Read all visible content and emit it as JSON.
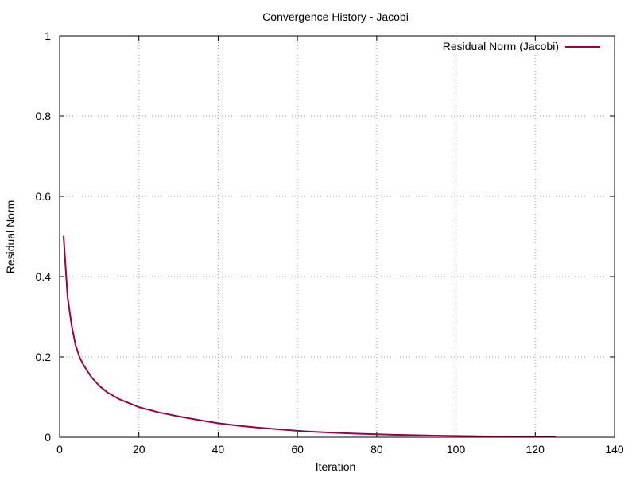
{
  "chart_data": {
    "type": "line",
    "title": "Convergence History - Jacobi",
    "xlabel": "Iteration",
    "ylabel": "Residual Norm",
    "xlim": [
      0,
      140
    ],
    "ylim": [
      0,
      1
    ],
    "xticks": [
      0,
      20,
      40,
      60,
      80,
      100,
      120,
      140
    ],
    "yticks": [
      0,
      0.2,
      0.4,
      0.6,
      0.8,
      1
    ],
    "xtick_labels": [
      "0",
      "20",
      "40",
      "60",
      "80",
      "100",
      "120",
      "140"
    ],
    "ytick_labels": [
      "0",
      "0.2",
      "0.4",
      "0.6",
      "0.8",
      "1"
    ],
    "grid": true,
    "legend_position": "top-right",
    "series": [
      {
        "name": "Residual Norm (Jacobi)",
        "color": "#99004d",
        "x": [
          1,
          2,
          3,
          4,
          5,
          6,
          8,
          10,
          12,
          15,
          20,
          25,
          30,
          35,
          40,
          45,
          50,
          55,
          60,
          65,
          70,
          75,
          80,
          85,
          90,
          95,
          100,
          105,
          110,
          115,
          120,
          125
        ],
        "y": [
          0.5,
          0.35,
          0.28,
          0.23,
          0.2,
          0.18,
          0.15,
          0.128,
          0.112,
          0.095,
          0.075,
          0.062,
          0.052,
          0.043,
          0.035,
          0.029,
          0.024,
          0.02,
          0.016,
          0.013,
          0.011,
          0.009,
          0.0075,
          0.006,
          0.005,
          0.004,
          0.0032,
          0.0025,
          0.002,
          0.0015,
          0.0012,
          0.001
        ]
      }
    ]
  }
}
